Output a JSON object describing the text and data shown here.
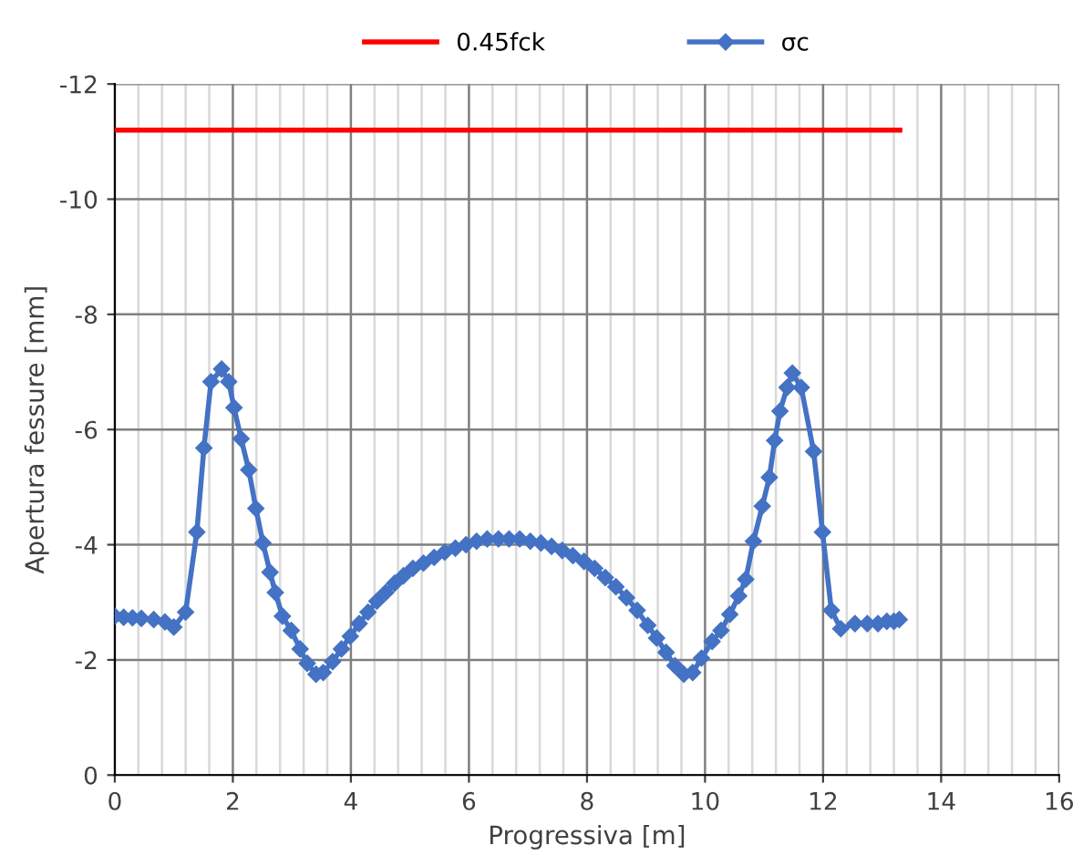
{
  "chart_data": {
    "type": "line",
    "xlabel": "Progressiva [m]",
    "ylabel": "Apertura fessure [mm]",
    "xlim": [
      0,
      16
    ],
    "xticks": [
      0,
      2,
      4,
      6,
      8,
      10,
      12,
      14,
      16
    ],
    "ylim": [
      0,
      -12
    ],
    "yticks": [
      0,
      -2,
      -4,
      -6,
      -8,
      -10,
      -12
    ],
    "grid": true,
    "legend": "top",
    "series": [
      {
        "name": "0.45fck",
        "color": "#ff0000",
        "marker": "none",
        "x": [
          0,
          13.3
        ],
        "values": [
          -11.2,
          -11.2
        ]
      },
      {
        "name": "σc",
        "color": "#4472c4",
        "marker": "diamond",
        "x": [
          0,
          0.15,
          0.3,
          0.45,
          0.66,
          0.85,
          1.0,
          1.2,
          1.39,
          1.51,
          1.63,
          1.81,
          1.93,
          2.02,
          2.14,
          2.27,
          2.39,
          2.51,
          2.63,
          2.72,
          2.84,
          2.99,
          3.14,
          3.26,
          3.41,
          3.53,
          3.69,
          3.84,
          3.99,
          4.14,
          4.29,
          4.44,
          4.59,
          4.74,
          4.89,
          5.05,
          5.23,
          5.41,
          5.59,
          5.77,
          5.95,
          6.13,
          6.31,
          6.5,
          6.68,
          6.86,
          7.04,
          7.22,
          7.4,
          7.58,
          7.76,
          7.95,
          8.13,
          8.31,
          8.49,
          8.67,
          8.85,
          9.03,
          9.18,
          9.34,
          9.49,
          9.64,
          9.79,
          9.94,
          10.12,
          10.27,
          10.42,
          10.57,
          10.69,
          10.82,
          10.97,
          11.09,
          11.18,
          11.27,
          11.39,
          11.48,
          11.63,
          11.84,
          11.99,
          12.14,
          12.3,
          12.54,
          12.75,
          12.93,
          13.08,
          13.2,
          13.29
        ],
        "values": [
          -2.76,
          -2.74,
          -2.73,
          -2.72,
          -2.7,
          -2.66,
          -2.57,
          -2.83,
          -4.22,
          -5.68,
          -6.83,
          -7.05,
          -6.83,
          -6.38,
          -5.84,
          -5.3,
          -4.63,
          -4.03,
          -3.52,
          -3.17,
          -2.76,
          -2.51,
          -2.19,
          -1.94,
          -1.75,
          -1.78,
          -1.97,
          -2.19,
          -2.41,
          -2.63,
          -2.83,
          -3.02,
          -3.17,
          -3.33,
          -3.46,
          -3.59,
          -3.68,
          -3.78,
          -3.87,
          -3.94,
          -4.0,
          -4.06,
          -4.1,
          -4.1,
          -4.1,
          -4.1,
          -4.06,
          -4.03,
          -3.97,
          -3.9,
          -3.81,
          -3.71,
          -3.59,
          -3.43,
          -3.27,
          -3.08,
          -2.86,
          -2.6,
          -2.38,
          -2.13,
          -1.9,
          -1.75,
          -1.78,
          -2.03,
          -2.32,
          -2.51,
          -2.79,
          -3.11,
          -3.4,
          -4.06,
          -4.67,
          -5.17,
          -5.81,
          -6.32,
          -6.73,
          -6.98,
          -6.73,
          -5.62,
          -4.22,
          -2.86,
          -2.54,
          -2.63,
          -2.63,
          -2.63,
          -2.67,
          -2.67,
          -2.7
        ]
      }
    ]
  }
}
